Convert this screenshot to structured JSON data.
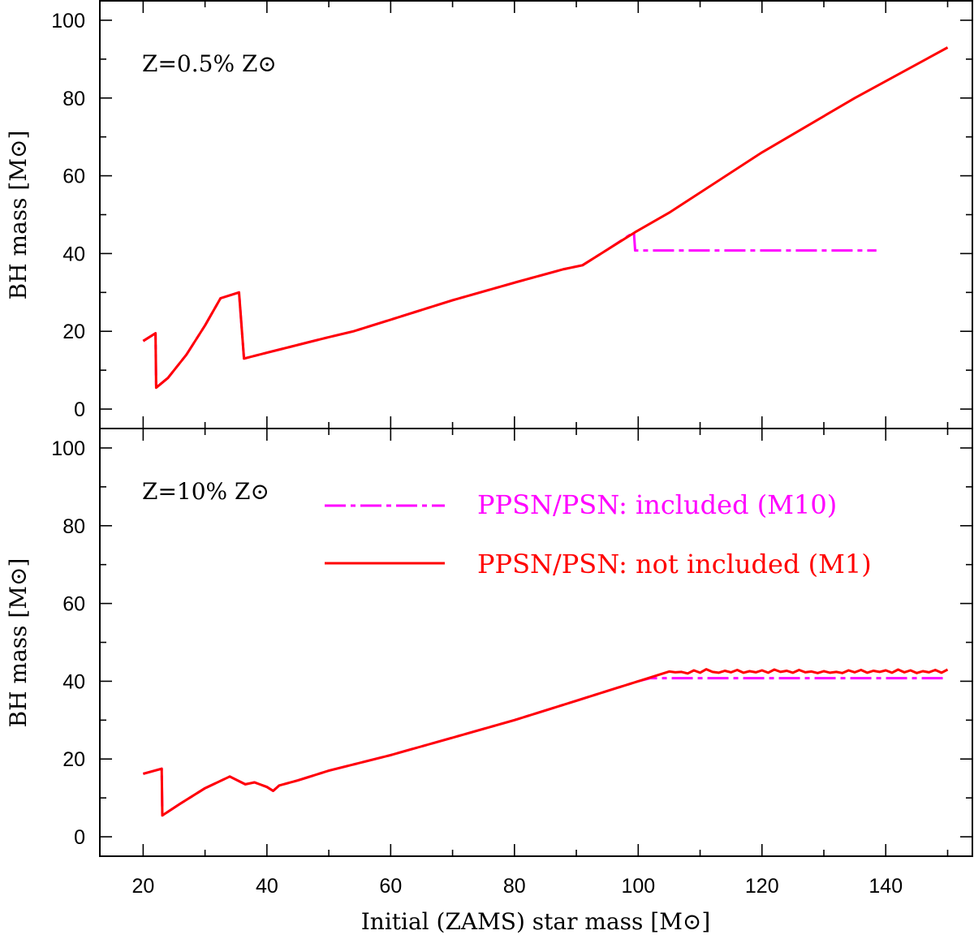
{
  "chart_data": {
    "type": "line",
    "xlabel": "Initial (ZAMS) star mass [M⊙]",
    "ylabel": "BH mass [M⊙]",
    "xlim": [
      13,
      154
    ],
    "ylim": [
      -5,
      105
    ],
    "xticks": [
      20,
      40,
      60,
      80,
      100,
      120,
      140
    ],
    "yticks": [
      0,
      20,
      40,
      60,
      80,
      100
    ],
    "xtick_labels": [
      "20",
      "40",
      "60",
      "80",
      "100",
      "120",
      "140"
    ],
    "ytick_labels": [
      "0",
      "20",
      "40",
      "60",
      "80",
      "100"
    ],
    "colors": {
      "ppsn_included": "#ff00ff",
      "ppsn_not_included": "#ff0000"
    },
    "legend": {
      "placement": "lower panel, top-right",
      "entries": [
        {
          "label": "PPSN/PSN: included (M10)",
          "color": "#ff00ff",
          "style": "dash-dot"
        },
        {
          "label": "PPSN/PSN: not included (M1)",
          "color": "#ff0000",
          "style": "solid"
        }
      ]
    },
    "panels": [
      {
        "annotation": "Z=0.5% Z⊙",
        "series": [
          {
            "name": "PPSN/PSN: not included (M1)",
            "color": "#ff0000",
            "points": [
              [
                20,
                17.5
              ],
              [
                22,
                19.5
              ],
              [
                22.1,
                5.5
              ],
              [
                24,
                8
              ],
              [
                27,
                14
              ],
              [
                30,
                21.5
              ],
              [
                32.5,
                28.5
              ],
              [
                35.5,
                30
              ],
              [
                36.3,
                13
              ],
              [
                40,
                14.5
              ],
              [
                45,
                16.5
              ],
              [
                50,
                18.5
              ],
              [
                54,
                20
              ],
              [
                60,
                23
              ],
              [
                70,
                28
              ],
              [
                80,
                32.5
              ],
              [
                88,
                36
              ],
              [
                91,
                37
              ],
              [
                95,
                41
              ],
              [
                99.5,
                45.5
              ],
              [
                105,
                50.5
              ],
              [
                120,
                66
              ],
              [
                135,
                80
              ],
              [
                150,
                93
              ]
            ]
          },
          {
            "name": "PPSN/PSN: included (M10)",
            "color": "#ff00ff",
            "points": [
              [
                20,
                17.5
              ],
              [
                22,
                19.5
              ],
              [
                22.1,
                5.5
              ],
              [
                24,
                8
              ],
              [
                27,
                14
              ],
              [
                30,
                21.5
              ],
              [
                32.5,
                28.5
              ],
              [
                35.5,
                30
              ],
              [
                36.3,
                13
              ],
              [
                40,
                14.5
              ],
              [
                45,
                16.5
              ],
              [
                50,
                18.5
              ],
              [
                54,
                20
              ],
              [
                60,
                23
              ],
              [
                70,
                28
              ],
              [
                80,
                32.5
              ],
              [
                88,
                36
              ],
              [
                91,
                37
              ],
              [
                95,
                41
              ],
              [
                99.3,
                45.5
              ],
              [
                99.5,
                40.8
              ],
              [
                138.5,
                40.8
              ]
            ]
          }
        ]
      },
      {
        "annotation": "Z=10% Z⊙",
        "series": [
          {
            "name": "PPSN/PSN: not included (M1)",
            "color": "#ff0000",
            "points": [
              [
                20,
                16.2
              ],
              [
                23,
                17.5
              ],
              [
                23.1,
                5.5
              ],
              [
                26,
                8.5
              ],
              [
                30,
                12.5
              ],
              [
                34,
                15.5
              ],
              [
                36.5,
                13.5
              ],
              [
                38,
                14
              ],
              [
                40,
                12.8
              ],
              [
                41,
                11.8
              ],
              [
                42,
                13.2
              ],
              [
                45,
                14.5
              ],
              [
                50,
                17
              ],
              [
                60,
                21
              ],
              [
                70,
                25.5
              ],
              [
                80,
                30
              ],
              [
                90,
                35
              ],
              [
                100,
                40
              ],
              [
                105,
                42.5
              ],
              [
                106,
                42.3
              ],
              [
                107,
                42.4
              ],
              [
                108,
                42
              ],
              [
                109,
                42.8
              ],
              [
                110,
                42.2
              ],
              [
                111,
                43.1
              ],
              [
                112,
                42.4
              ],
              [
                113,
                42.2
              ],
              [
                114,
                42.7
              ],
              [
                115,
                42.3
              ],
              [
                116,
                42.9
              ],
              [
                117,
                42.2
              ],
              [
                118,
                42.6
              ],
              [
                119,
                42.3
              ],
              [
                120,
                42.8
              ],
              [
                121,
                42.2
              ],
              [
                122,
                43
              ],
              [
                123,
                42.4
              ],
              [
                124,
                42.7
              ],
              [
                125,
                42.2
              ],
              [
                126,
                42.9
              ],
              [
                127,
                42.3
              ],
              [
                128,
                42.5
              ],
              [
                129,
                42.1
              ],
              [
                130,
                42.6
              ],
              [
                131,
                42.2
              ],
              [
                132,
                42.4
              ],
              [
                133,
                42.1
              ],
              [
                134,
                42.8
              ],
              [
                135,
                42.3
              ],
              [
                136,
                42.9
              ],
              [
                137,
                42.2
              ],
              [
                138,
                42.7
              ],
              [
                139,
                42.4
              ],
              [
                140,
                42.8
              ],
              [
                141,
                42.2
              ],
              [
                142,
                43
              ],
              [
                143,
                42.3
              ],
              [
                144,
                42.8
              ],
              [
                145,
                42.1
              ],
              [
                146,
                42.6
              ],
              [
                147,
                42.3
              ],
              [
                148,
                42.9
              ],
              [
                149,
                42.2
              ],
              [
                150,
                43
              ]
            ]
          },
          {
            "name": "PPSN/PSN: included (M10)",
            "color": "#ff00ff",
            "points": [
              [
                20,
                16.2
              ],
              [
                23,
                17.5
              ],
              [
                23.1,
                5.5
              ],
              [
                26,
                8.5
              ],
              [
                30,
                12.5
              ],
              [
                34,
                15.5
              ],
              [
                36.5,
                13.5
              ],
              [
                38,
                14
              ],
              [
                40,
                12.8
              ],
              [
                41,
                11.8
              ],
              [
                42,
                13.2
              ],
              [
                45,
                14.5
              ],
              [
                50,
                17
              ],
              [
                60,
                21
              ],
              [
                70,
                25.5
              ],
              [
                80,
                30
              ],
              [
                90,
                35
              ],
              [
                100,
                40
              ],
              [
                102,
                40.8
              ],
              [
                150,
                40.8
              ]
            ]
          }
        ]
      }
    ]
  }
}
